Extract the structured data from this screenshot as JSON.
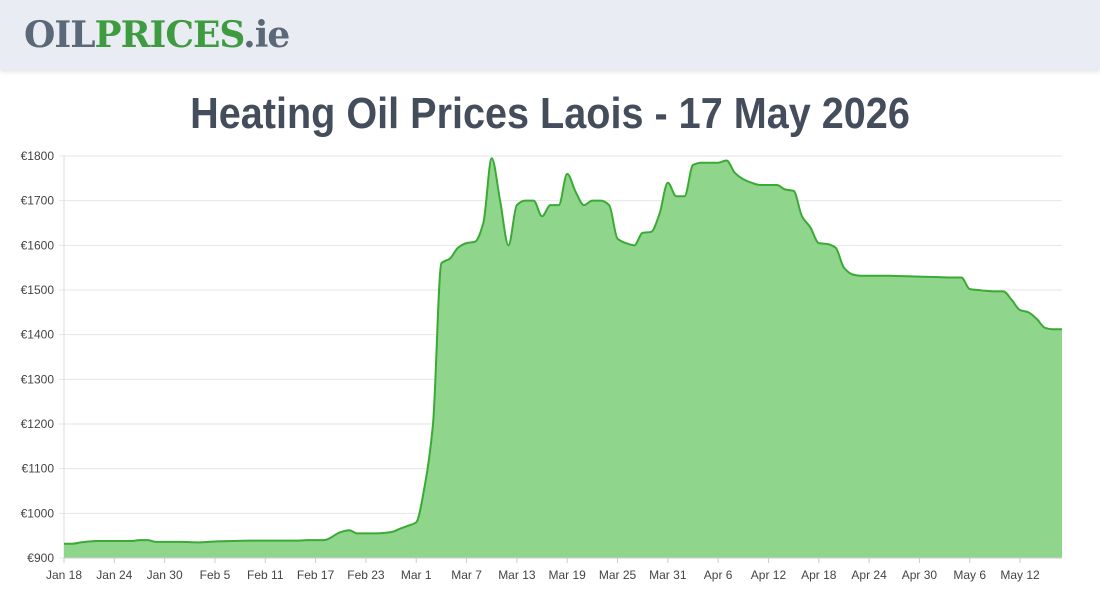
{
  "header": {
    "logo_part1": "OIL",
    "logo_part2": "PRICES",
    "logo_part3": ".ie"
  },
  "page": {
    "title": "Heating Oil Prices Laois - 17 May 2026"
  },
  "colors": {
    "line": "#3aaa35",
    "fill": "#8fd68c",
    "grid": "#e6e6e6",
    "header_bg": "#e9ecf3",
    "logo_grey": "#5b6878",
    "logo_green": "#3f9b40",
    "title": "#444d5c"
  },
  "chart_data": {
    "type": "area",
    "title": "",
    "xlabel": "",
    "ylabel": "",
    "y_prefix": "€",
    "ylim": [
      900,
      1800
    ],
    "yticks": [
      900,
      1000,
      1100,
      1200,
      1300,
      1400,
      1500,
      1600,
      1700,
      1800
    ],
    "xlim": [
      "2026-01-18",
      "2026-05-17"
    ],
    "xticks": [
      {
        "date": "2026-01-18",
        "label": "Jan 18"
      },
      {
        "date": "2026-01-24",
        "label": "Jan 24"
      },
      {
        "date": "2026-01-30",
        "label": "Jan 30"
      },
      {
        "date": "2026-02-05",
        "label": "Feb 5"
      },
      {
        "date": "2026-02-11",
        "label": "Feb 11"
      },
      {
        "date": "2026-02-17",
        "label": "Feb 17"
      },
      {
        "date": "2026-02-23",
        "label": "Feb 23"
      },
      {
        "date": "2026-03-01",
        "label": "Mar 1"
      },
      {
        "date": "2026-03-07",
        "label": "Mar 7"
      },
      {
        "date": "2026-03-13",
        "label": "Mar 13"
      },
      {
        "date": "2026-03-19",
        "label": "Mar 19"
      },
      {
        "date": "2026-03-25",
        "label": "Mar 25"
      },
      {
        "date": "2026-03-31",
        "label": "Mar 31"
      },
      {
        "date": "2026-04-06",
        "label": "Apr 6"
      },
      {
        "date": "2026-04-12",
        "label": "Apr 12"
      },
      {
        "date": "2026-04-18",
        "label": "Apr 18"
      },
      {
        "date": "2026-04-24",
        "label": "Apr 24"
      },
      {
        "date": "2026-04-30",
        "label": "Apr 30"
      },
      {
        "date": "2026-05-06",
        "label": "May 6"
      },
      {
        "date": "2026-05-12",
        "label": "May 12"
      }
    ],
    "grid": true,
    "legend": "none",
    "series": [
      {
        "points": [
          [
            "2026-01-18",
            932
          ],
          [
            "2026-01-19",
            932
          ],
          [
            "2026-01-20",
            935
          ],
          [
            "2026-01-21",
            937
          ],
          [
            "2026-01-22",
            938
          ],
          [
            "2026-01-23",
            938
          ],
          [
            "2026-01-24",
            938
          ],
          [
            "2026-01-25",
            938
          ],
          [
            "2026-01-26",
            938
          ],
          [
            "2026-01-27",
            940
          ],
          [
            "2026-01-28",
            940
          ],
          [
            "2026-01-29",
            936
          ],
          [
            "2026-01-30",
            936
          ],
          [
            "2026-02-01",
            936
          ],
          [
            "2026-02-03",
            935
          ],
          [
            "2026-02-05",
            937
          ],
          [
            "2026-02-07",
            938
          ],
          [
            "2026-02-09",
            939
          ],
          [
            "2026-02-11",
            939
          ],
          [
            "2026-02-13",
            939
          ],
          [
            "2026-02-15",
            939
          ],
          [
            "2026-02-16",
            940
          ],
          [
            "2026-02-17",
            940
          ],
          [
            "2026-02-18",
            940
          ],
          [
            "2026-02-20",
            958
          ],
          [
            "2026-02-21",
            962
          ],
          [
            "2026-02-22",
            955
          ],
          [
            "2026-02-24",
            955
          ],
          [
            "2026-02-26",
            958
          ],
          [
            "2026-02-27",
            965
          ],
          [
            "2026-02-28",
            972
          ],
          [
            "2026-03-01",
            980
          ],
          [
            "2026-03-02",
            1060
          ],
          [
            "2026-03-03",
            1200
          ],
          [
            "2026-03-04",
            1560
          ],
          [
            "2026-03-05",
            1570
          ],
          [
            "2026-03-06",
            1595
          ],
          [
            "2026-03-07",
            1605
          ],
          [
            "2026-03-08",
            1608
          ],
          [
            "2026-03-09",
            1650
          ],
          [
            "2026-03-10",
            1795
          ],
          [
            "2026-03-11",
            1700
          ],
          [
            "2026-03-12",
            1600
          ],
          [
            "2026-03-13",
            1690
          ],
          [
            "2026-03-14",
            1700
          ],
          [
            "2026-03-15",
            1700
          ],
          [
            "2026-03-16",
            1665
          ],
          [
            "2026-03-17",
            1690
          ],
          [
            "2026-03-18",
            1690
          ],
          [
            "2026-03-19",
            1760
          ],
          [
            "2026-03-20",
            1720
          ],
          [
            "2026-03-21",
            1690
          ],
          [
            "2026-03-22",
            1700
          ],
          [
            "2026-03-23",
            1700
          ],
          [
            "2026-03-24",
            1690
          ],
          [
            "2026-03-25",
            1615
          ],
          [
            "2026-03-26",
            1605
          ],
          [
            "2026-03-27",
            1600
          ],
          [
            "2026-03-28",
            1628
          ],
          [
            "2026-03-29",
            1630
          ],
          [
            "2026-03-30",
            1670
          ],
          [
            "2026-03-31",
            1740
          ],
          [
            "2026-04-01",
            1710
          ],
          [
            "2026-04-02",
            1710
          ],
          [
            "2026-04-03",
            1780
          ],
          [
            "2026-04-04",
            1785
          ],
          [
            "2026-04-05",
            1785
          ],
          [
            "2026-04-06",
            1785
          ],
          [
            "2026-04-07",
            1790
          ],
          [
            "2026-04-08",
            1762
          ],
          [
            "2026-04-09",
            1748
          ],
          [
            "2026-04-10",
            1740
          ],
          [
            "2026-04-11",
            1735
          ],
          [
            "2026-04-12",
            1735
          ],
          [
            "2026-04-13",
            1735
          ],
          [
            "2026-04-14",
            1725
          ],
          [
            "2026-04-15",
            1722
          ],
          [
            "2026-04-16",
            1665
          ],
          [
            "2026-04-17",
            1640
          ],
          [
            "2026-04-18",
            1605
          ],
          [
            "2026-04-19",
            1603
          ],
          [
            "2026-04-20",
            1595
          ],
          [
            "2026-04-21",
            1550
          ],
          [
            "2026-04-22",
            1535
          ],
          [
            "2026-04-23",
            1532
          ],
          [
            "2026-04-24",
            1532
          ],
          [
            "2026-04-26",
            1532
          ],
          [
            "2026-04-28",
            1531
          ],
          [
            "2026-04-30",
            1530
          ],
          [
            "2026-05-02",
            1529
          ],
          [
            "2026-05-04",
            1528
          ],
          [
            "2026-05-05",
            1528
          ],
          [
            "2026-05-06",
            1502
          ],
          [
            "2026-05-07",
            1500
          ],
          [
            "2026-05-08",
            1498
          ],
          [
            "2026-05-09",
            1497
          ],
          [
            "2026-05-10",
            1497
          ],
          [
            "2026-05-11",
            1478
          ],
          [
            "2026-05-12",
            1455
          ],
          [
            "2026-05-13",
            1450
          ],
          [
            "2026-05-14",
            1435
          ],
          [
            "2026-05-15",
            1415
          ],
          [
            "2026-05-16",
            1412
          ],
          [
            "2026-05-17",
            1412
          ]
        ]
      }
    ]
  }
}
